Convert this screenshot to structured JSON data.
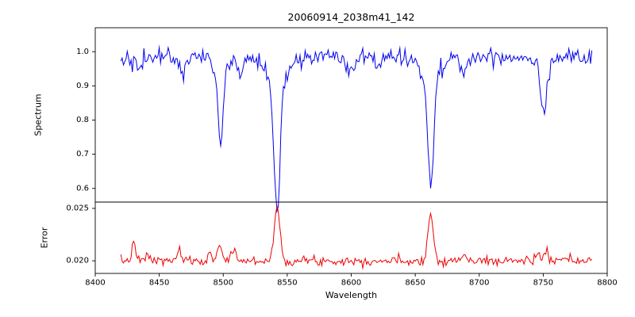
{
  "figure": {
    "title": "20060914_2038m41_142",
    "xlabel": "Wavelength",
    "background": "#ffffff",
    "axis_color": "#000000",
    "xlim": [
      8400,
      8800
    ],
    "xticks": [
      8400,
      8450,
      8500,
      8550,
      8600,
      8650,
      8700,
      8750,
      8800
    ],
    "xtick_labels": [
      "8400",
      "8450",
      "8500",
      "8550",
      "8600",
      "8650",
      "8700",
      "8750",
      "8800"
    ]
  },
  "chart_data": [
    {
      "type": "line",
      "name": "spectrum",
      "ylabel": "Spectrum",
      "color": "#0000ee",
      "x_start": 8420,
      "x_end": 8788,
      "x_step": 1,
      "xlim": [
        8400,
        8800
      ],
      "ylim": [
        0.56,
        1.07
      ],
      "yticks": [
        0.6,
        0.7,
        0.8,
        0.9,
        1.0
      ],
      "ytick_labels": [
        "0.6",
        "0.7",
        "0.8",
        "0.9",
        "1.0"
      ],
      "continuum": 0.985,
      "noise_sigma": 0.013,
      "seed": 42,
      "absorption_lines": [
        {
          "center": 8434,
          "depth": 0.05,
          "sigma": 2.0
        },
        {
          "center": 8468,
          "depth": 0.05,
          "sigma": 2.0
        },
        {
          "center": 8498.0,
          "depth": 0.2,
          "sigma": 1.8
        },
        {
          "center": 8498.0,
          "depth": 0.05,
          "sigma": 6.0
        },
        {
          "center": 8514,
          "depth": 0.05,
          "sigma": 2.0
        },
        {
          "center": 8542.1,
          "depth": 0.38,
          "sigma": 2.4
        },
        {
          "center": 8542.1,
          "depth": 0.07,
          "sigma": 9.0
        },
        {
          "center": 8598,
          "depth": 0.05,
          "sigma": 3.0
        },
        {
          "center": 8621,
          "depth": 0.04,
          "sigma": 2.0
        },
        {
          "center": 8662.1,
          "depth": 0.31,
          "sigma": 2.2
        },
        {
          "center": 8662.1,
          "depth": 0.06,
          "sigma": 8.0
        },
        {
          "center": 8688,
          "depth": 0.05,
          "sigma": 2.5
        },
        {
          "center": 8750.5,
          "depth": 0.16,
          "sigma": 2.6
        }
      ]
    },
    {
      "type": "line",
      "name": "error",
      "ylabel": "Error",
      "color": "#ee0000",
      "x_start": 8420,
      "x_end": 8788,
      "x_step": 1,
      "xlim": [
        8400,
        8800
      ],
      "ylim": [
        0.0188,
        0.0256
      ],
      "yticks": [
        0.02,
        0.025
      ],
      "ytick_labels": [
        "0.020",
        "0.025"
      ],
      "baseline": 0.02,
      "noise_sigma": 0.00022,
      "seed": 7,
      "peaks": [
        {
          "center": 8430,
          "height": 0.0016,
          "sigma": 1.5
        },
        {
          "center": 8441,
          "height": 0.0006,
          "sigma": 1.5
        },
        {
          "center": 8465,
          "height": 0.0009,
          "sigma": 1.5
        },
        {
          "center": 8490,
          "height": 0.0005,
          "sigma": 1.5
        },
        {
          "center": 8497,
          "height": 0.0016,
          "sigma": 1.8
        },
        {
          "center": 8508,
          "height": 0.0011,
          "sigma": 1.8
        },
        {
          "center": 8542,
          "height": 0.0051,
          "sigma": 2.2
        },
        {
          "center": 8662,
          "height": 0.0043,
          "sigma": 2.2
        },
        {
          "center": 8688,
          "height": 0.0005,
          "sigma": 1.8
        },
        {
          "center": 8745,
          "height": 0.0008,
          "sigma": 1.5
        },
        {
          "center": 8752,
          "height": 0.001,
          "sigma": 1.5
        }
      ]
    }
  ]
}
